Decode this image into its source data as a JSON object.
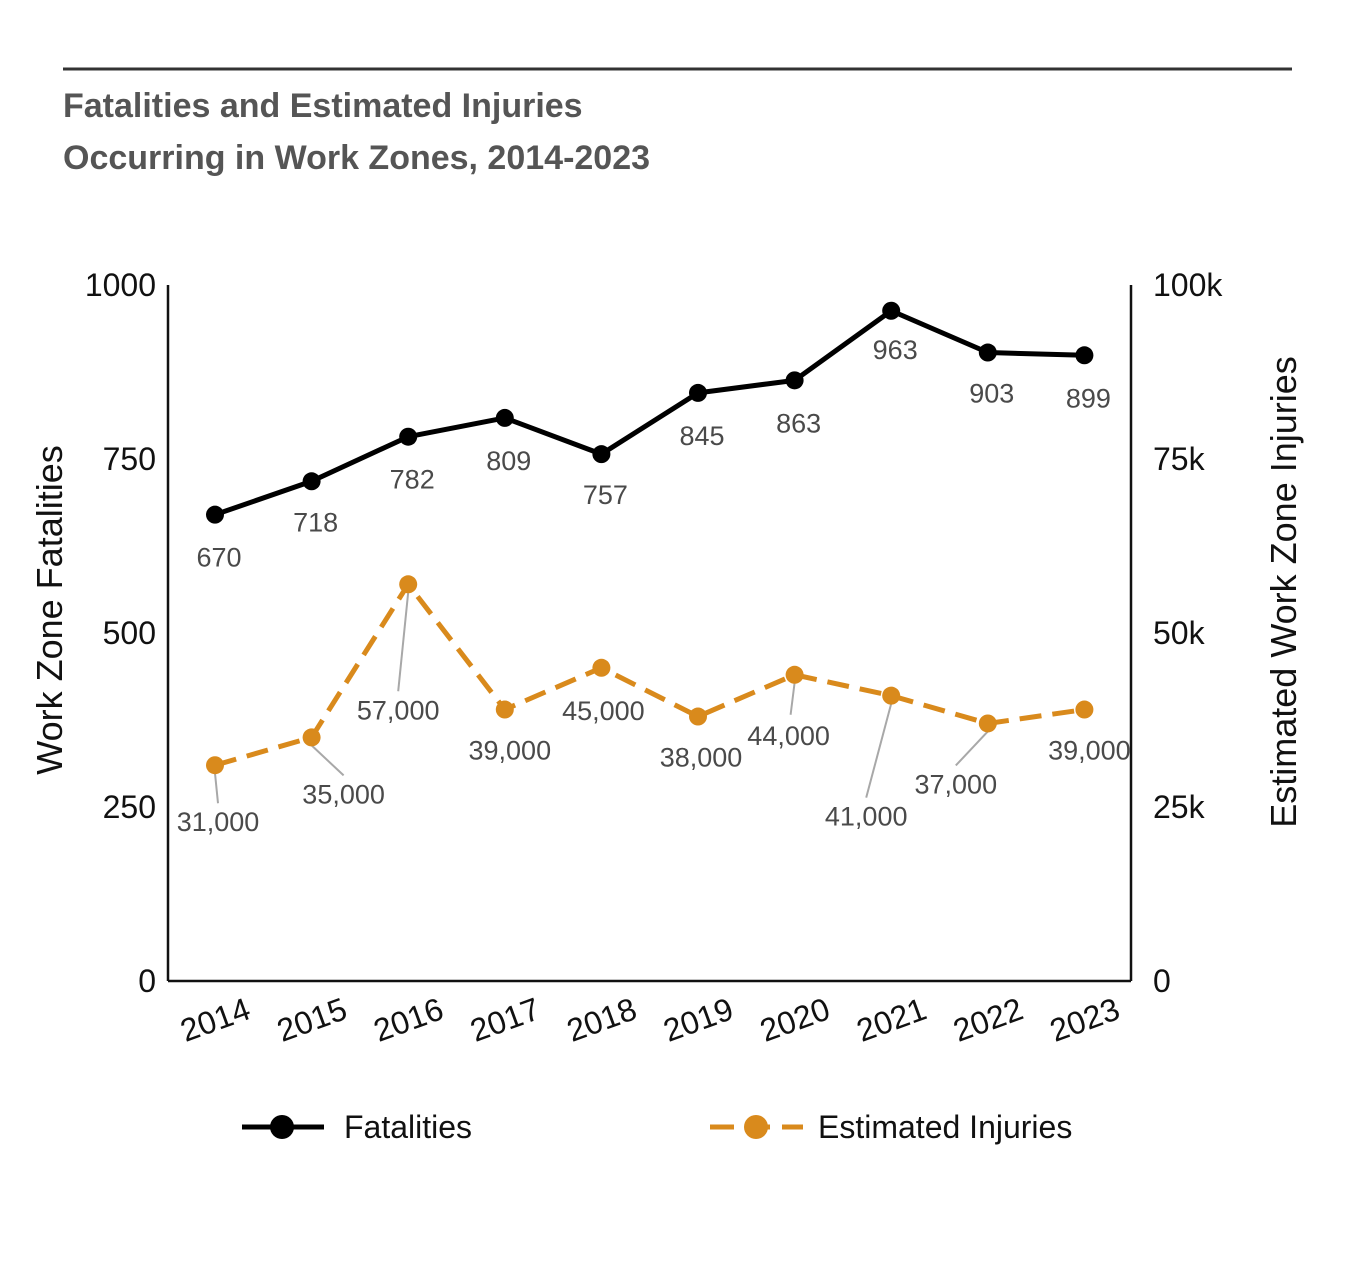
{
  "title_line1": "Fatalities and Estimated Injuries",
  "title_line2": "Occurring in Work Zones, 2014-2023",
  "chart_data": {
    "type": "line",
    "title": "Fatalities and Estimated Injuries Occurring in Work Zones, 2014-2023",
    "x": [
      "2014",
      "2015",
      "2016",
      "2017",
      "2018",
      "2019",
      "2020",
      "2021",
      "2022",
      "2023"
    ],
    "ylabel_left": "Work Zone Fatalities",
    "ylabel_right": "Estimated Work Zone Injuries",
    "ylim_left": [
      0,
      1000
    ],
    "ylim_right": [
      0,
      100000
    ],
    "yticks_left": [
      "0",
      "250",
      "500",
      "750",
      "1000"
    ],
    "yticks_right": [
      "0",
      "25k",
      "50k",
      "75k",
      "100k"
    ],
    "grid": false,
    "legend_position": "bottom",
    "series": [
      {
        "name": "Fatalities",
        "axis": "left",
        "color": "#000000",
        "line_style": "solid",
        "values": [
          670,
          718,
          782,
          809,
          757,
          845,
          863,
          963,
          903,
          899
        ],
        "labels": [
          "670",
          "718",
          "782",
          "809",
          "757",
          "845",
          "863",
          "963",
          "903",
          "899"
        ]
      },
      {
        "name": "Estimated Injuries",
        "axis": "right",
        "color": "#D98A1C",
        "line_style": "dashed",
        "values": [
          31000,
          35000,
          57000,
          39000,
          45000,
          38000,
          44000,
          41000,
          37000,
          39000
        ],
        "labels": [
          "31,000",
          "35,000",
          "57,000",
          "39,000",
          "45,000",
          "38,000",
          "44,000",
          "41,000",
          "37,000",
          "39,000"
        ]
      }
    ]
  }
}
